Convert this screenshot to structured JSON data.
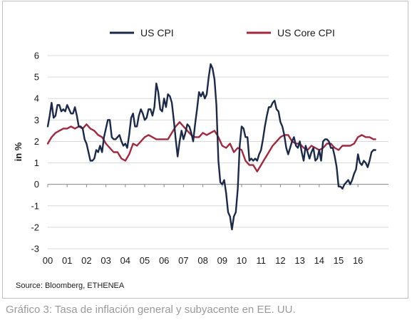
{
  "caption": "Gráfico 3: Tasa de inflación general y subyacente en EE. UU.",
  "chart_data": {
    "type": "line",
    "ylabel": "in %",
    "xlabel": "",
    "ylim": [
      -3,
      6
    ],
    "yticks": [
      6,
      5,
      4,
      3,
      2,
      1,
      0,
      -1,
      -2,
      -3
    ],
    "xlim": [
      2000,
      2016.9
    ],
    "x_tick_labels": [
      "00",
      "01",
      "02",
      "03",
      "04",
      "05",
      "06",
      "07",
      "08",
      "09",
      "10",
      "11",
      "12",
      "13",
      "14",
      "15",
      "16"
    ],
    "grid": "horizontal",
    "legend_position": "top",
    "source": "Source: Bloomberg, ETHENEA",
    "series": [
      {
        "name": "US CPI",
        "color": "#1b2a4a",
        "points": [
          [
            2000.0,
            2.7
          ],
          [
            2000.1,
            3.2
          ],
          [
            2000.2,
            3.8
          ],
          [
            2000.3,
            3.1
          ],
          [
            2000.4,
            3.2
          ],
          [
            2000.5,
            3.7
          ],
          [
            2000.6,
            3.7
          ],
          [
            2000.7,
            3.4
          ],
          [
            2000.8,
            3.5
          ],
          [
            2000.9,
            3.4
          ],
          [
            2001.0,
            3.7
          ],
          [
            2001.1,
            3.5
          ],
          [
            2001.2,
            3.3
          ],
          [
            2001.3,
            3.3
          ],
          [
            2001.4,
            3.6
          ],
          [
            2001.5,
            3.2
          ],
          [
            2001.6,
            2.7
          ],
          [
            2001.7,
            2.7
          ],
          [
            2001.8,
            2.6
          ],
          [
            2001.9,
            2.1
          ],
          [
            2002.0,
            1.9
          ],
          [
            2002.1,
            1.5
          ],
          [
            2002.2,
            1.1
          ],
          [
            2002.3,
            1.1
          ],
          [
            2002.4,
            1.2
          ],
          [
            2002.5,
            1.6
          ],
          [
            2002.6,
            1.5
          ],
          [
            2002.7,
            1.8
          ],
          [
            2002.8,
            1.5
          ],
          [
            2002.9,
            2.2
          ],
          [
            2003.0,
            2.6
          ],
          [
            2003.1,
            3.0
          ],
          [
            2003.2,
            3.0
          ],
          [
            2003.3,
            2.2
          ],
          [
            2003.4,
            2.1
          ],
          [
            2003.5,
            2.1
          ],
          [
            2003.6,
            2.2
          ],
          [
            2003.7,
            2.3
          ],
          [
            2003.8,
            2.0
          ],
          [
            2003.9,
            1.8
          ],
          [
            2004.0,
            1.9
          ],
          [
            2004.1,
            1.7
          ],
          [
            2004.2,
            2.3
          ],
          [
            2004.3,
            3.1
          ],
          [
            2004.4,
            3.3
          ],
          [
            2004.5,
            2.7
          ],
          [
            2004.6,
            2.7
          ],
          [
            2004.7,
            3.2
          ],
          [
            2004.8,
            3.5
          ],
          [
            2004.9,
            3.3
          ],
          [
            2005.0,
            3.0
          ],
          [
            2005.1,
            3.1
          ],
          [
            2005.2,
            3.5
          ],
          [
            2005.3,
            3.5
          ],
          [
            2005.4,
            3.2
          ],
          [
            2005.5,
            3.6
          ],
          [
            2005.6,
            4.7
          ],
          [
            2005.7,
            4.3
          ],
          [
            2005.8,
            3.5
          ],
          [
            2005.9,
            3.4
          ],
          [
            2006.0,
            4.0
          ],
          [
            2006.1,
            3.6
          ],
          [
            2006.2,
            4.2
          ],
          [
            2006.3,
            4.1
          ],
          [
            2006.4,
            3.8
          ],
          [
            2006.5,
            3.0
          ],
          [
            2006.6,
            2.1
          ],
          [
            2006.7,
            1.3
          ],
          [
            2006.8,
            2.0
          ],
          [
            2006.9,
            2.5
          ],
          [
            2007.0,
            2.1
          ],
          [
            2007.1,
            2.4
          ],
          [
            2007.2,
            2.8
          ],
          [
            2007.3,
            2.7
          ],
          [
            2007.4,
            2.4
          ],
          [
            2007.5,
            2.0
          ],
          [
            2007.6,
            2.8
          ],
          [
            2007.7,
            3.5
          ],
          [
            2007.8,
            4.3
          ],
          [
            2007.9,
            4.1
          ],
          [
            2008.0,
            4.3
          ],
          [
            2008.1,
            4.0
          ],
          [
            2008.2,
            4.2
          ],
          [
            2008.3,
            5.0
          ],
          [
            2008.4,
            5.6
          ],
          [
            2008.5,
            5.4
          ],
          [
            2008.6,
            4.9
          ],
          [
            2008.7,
            3.7
          ],
          [
            2008.8,
            1.1
          ],
          [
            2008.9,
            0.1
          ],
          [
            2009.0,
            0.0
          ],
          [
            2009.1,
            0.2
          ],
          [
            2009.2,
            -0.4
          ],
          [
            2009.3,
            -1.3
          ],
          [
            2009.4,
            -1.5
          ],
          [
            2009.5,
            -2.1
          ],
          [
            2009.6,
            -1.5
          ],
          [
            2009.7,
            -1.3
          ],
          [
            2009.8,
            -0.2
          ],
          [
            2009.9,
            1.8
          ],
          [
            2010.0,
            2.7
          ],
          [
            2010.1,
            2.6
          ],
          [
            2010.2,
            2.2
          ],
          [
            2010.3,
            2.2
          ],
          [
            2010.4,
            1.1
          ],
          [
            2010.5,
            1.2
          ],
          [
            2010.6,
            1.1
          ],
          [
            2010.7,
            1.2
          ],
          [
            2010.8,
            1.1
          ],
          [
            2010.9,
            1.4
          ],
          [
            2011.0,
            1.6
          ],
          [
            2011.1,
            2.1
          ],
          [
            2011.2,
            2.7
          ],
          [
            2011.3,
            3.2
          ],
          [
            2011.4,
            3.6
          ],
          [
            2011.5,
            3.6
          ],
          [
            2011.6,
            3.8
          ],
          [
            2011.7,
            3.9
          ],
          [
            2011.8,
            3.5
          ],
          [
            2011.9,
            3.4
          ],
          [
            2012.0,
            2.9
          ],
          [
            2012.1,
            2.7
          ],
          [
            2012.2,
            2.3
          ],
          [
            2012.3,
            1.7
          ],
          [
            2012.4,
            1.4
          ],
          [
            2012.5,
            1.7
          ],
          [
            2012.6,
            2.0
          ],
          [
            2012.7,
            2.2
          ],
          [
            2012.8,
            1.8
          ],
          [
            2012.9,
            1.7
          ],
          [
            2013.0,
            2.0
          ],
          [
            2013.1,
            1.5
          ],
          [
            2013.2,
            1.1
          ],
          [
            2013.3,
            1.8
          ],
          [
            2013.4,
            1.5
          ],
          [
            2013.5,
            1.2
          ],
          [
            2013.6,
            1.5
          ],
          [
            2013.7,
            1.7
          ],
          [
            2013.8,
            1.1
          ],
          [
            2013.9,
            1.2
          ],
          [
            2014.0,
            1.6
          ],
          [
            2014.1,
            1.1
          ],
          [
            2014.2,
            2.0
          ],
          [
            2014.3,
            2.1
          ],
          [
            2014.4,
            2.1
          ],
          [
            2014.5,
            2.0
          ],
          [
            2014.6,
            1.7
          ],
          [
            2014.7,
            1.7
          ],
          [
            2014.8,
            1.3
          ],
          [
            2014.9,
            0.8
          ],
          [
            2015.0,
            -0.1
          ],
          [
            2015.1,
            -0.1
          ],
          [
            2015.2,
            -0.2
          ],
          [
            2015.3,
            0.0
          ],
          [
            2015.4,
            0.1
          ],
          [
            2015.5,
            0.2
          ],
          [
            2015.6,
            0.0
          ],
          [
            2015.7,
            0.2
          ],
          [
            2015.8,
            0.5
          ],
          [
            2015.9,
            0.7
          ],
          [
            2016.0,
            1.4
          ],
          [
            2016.1,
            1.0
          ],
          [
            2016.2,
            0.9
          ],
          [
            2016.3,
            1.1
          ],
          [
            2016.4,
            1.0
          ],
          [
            2016.5,
            0.8
          ],
          [
            2016.6,
            1.1
          ],
          [
            2016.7,
            1.5
          ],
          [
            2016.8,
            1.6
          ],
          [
            2016.9,
            1.6
          ]
        ]
      },
      {
        "name": "US Core CPI",
        "color": "#a3283e",
        "points": [
          [
            2000.0,
            1.9
          ],
          [
            2000.2,
            2.2
          ],
          [
            2000.4,
            2.4
          ],
          [
            2000.6,
            2.5
          ],
          [
            2000.8,
            2.6
          ],
          [
            2001.0,
            2.6
          ],
          [
            2001.2,
            2.7
          ],
          [
            2001.4,
            2.6
          ],
          [
            2001.6,
            2.7
          ],
          [
            2001.8,
            2.6
          ],
          [
            2002.0,
            2.8
          ],
          [
            2002.2,
            2.6
          ],
          [
            2002.4,
            2.5
          ],
          [
            2002.6,
            2.3
          ],
          [
            2002.8,
            2.2
          ],
          [
            2003.0,
            1.9
          ],
          [
            2003.2,
            1.7
          ],
          [
            2003.4,
            1.5
          ],
          [
            2003.6,
            1.5
          ],
          [
            2003.8,
            1.2
          ],
          [
            2004.0,
            1.1
          ],
          [
            2004.2,
            1.4
          ],
          [
            2004.4,
            1.9
          ],
          [
            2004.6,
            1.8
          ],
          [
            2004.8,
            2.0
          ],
          [
            2005.0,
            2.2
          ],
          [
            2005.2,
            2.3
          ],
          [
            2005.4,
            2.2
          ],
          [
            2005.6,
            2.1
          ],
          [
            2005.8,
            2.1
          ],
          [
            2006.0,
            2.1
          ],
          [
            2006.2,
            2.1
          ],
          [
            2006.4,
            2.4
          ],
          [
            2006.6,
            2.7
          ],
          [
            2006.8,
            2.9
          ],
          [
            2007.0,
            2.7
          ],
          [
            2007.2,
            2.5
          ],
          [
            2007.4,
            2.3
          ],
          [
            2007.6,
            2.2
          ],
          [
            2007.8,
            2.2
          ],
          [
            2008.0,
            2.4
          ],
          [
            2008.2,
            2.3
          ],
          [
            2008.4,
            2.4
          ],
          [
            2008.6,
            2.5
          ],
          [
            2008.8,
            2.2
          ],
          [
            2009.0,
            1.8
          ],
          [
            2009.2,
            1.7
          ],
          [
            2009.4,
            1.9
          ],
          [
            2009.6,
            1.5
          ],
          [
            2009.8,
            1.7
          ],
          [
            2010.0,
            1.6
          ],
          [
            2010.2,
            1.1
          ],
          [
            2010.4,
            0.9
          ],
          [
            2010.6,
            0.9
          ],
          [
            2010.8,
            0.6
          ],
          [
            2011.0,
            0.9
          ],
          [
            2011.2,
            1.2
          ],
          [
            2011.4,
            1.5
          ],
          [
            2011.6,
            1.8
          ],
          [
            2011.8,
            2.0
          ],
          [
            2012.0,
            2.2
          ],
          [
            2012.2,
            2.3
          ],
          [
            2012.4,
            2.3
          ],
          [
            2012.6,
            2.0
          ],
          [
            2012.8,
            1.9
          ],
          [
            2013.0,
            1.9
          ],
          [
            2013.2,
            1.7
          ],
          [
            2013.4,
            1.6
          ],
          [
            2013.6,
            1.8
          ],
          [
            2013.8,
            1.7
          ],
          [
            2014.0,
            1.6
          ],
          [
            2014.2,
            1.7
          ],
          [
            2014.4,
            1.9
          ],
          [
            2014.6,
            1.9
          ],
          [
            2014.8,
            1.7
          ],
          [
            2015.0,
            1.6
          ],
          [
            2015.2,
            1.8
          ],
          [
            2015.4,
            1.8
          ],
          [
            2015.6,
            1.8
          ],
          [
            2015.8,
            1.9
          ],
          [
            2016.0,
            2.2
          ],
          [
            2016.2,
            2.3
          ],
          [
            2016.4,
            2.2
          ],
          [
            2016.6,
            2.2
          ],
          [
            2016.8,
            2.1
          ],
          [
            2016.9,
            2.1
          ]
        ]
      }
    ]
  }
}
